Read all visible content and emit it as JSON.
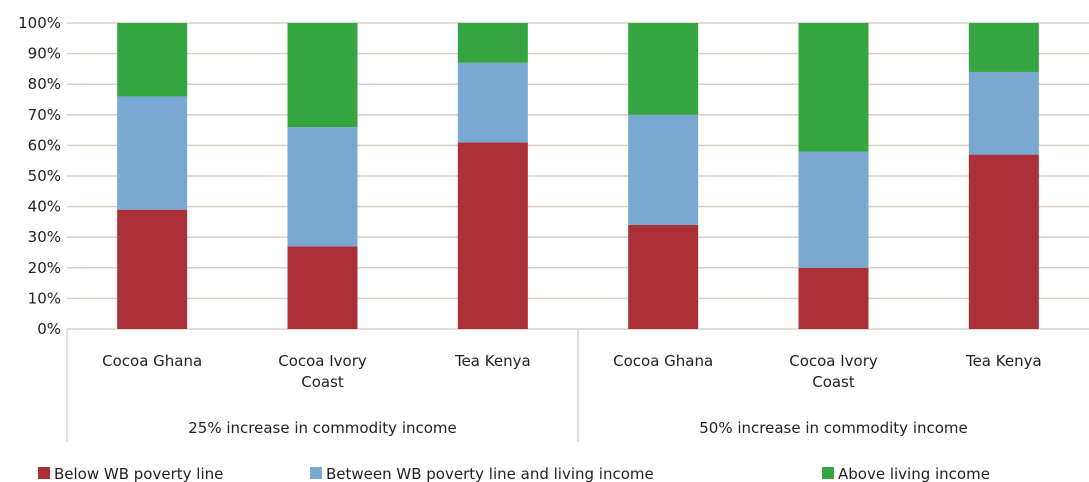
{
  "chart_data": {
    "type": "bar",
    "stacked": true,
    "y_axis": {
      "ylim": [
        0,
        100
      ],
      "ticks": [
        "0%",
        "10%",
        "20%",
        "30%",
        "40%",
        "50%",
        "60%",
        "70%",
        "80%",
        "90%",
        "100%"
      ]
    },
    "grid": true,
    "groups": [
      {
        "label": "25% increase in commodity income",
        "categories": [
          [
            "Cocoa Ghana"
          ],
          [
            "Cocoa Ivory",
            "Coast"
          ],
          [
            "Tea Kenya"
          ]
        ]
      },
      {
        "label": "50% increase in commodity income",
        "categories": [
          [
            "Cocoa Ghana"
          ],
          [
            "Cocoa Ivory",
            "Coast"
          ],
          [
            "Tea Kenya"
          ]
        ]
      }
    ],
    "series": [
      {
        "name": "Below WB poverty line",
        "color": "#ab3038",
        "values": [
          39,
          27,
          61,
          34,
          20,
          57
        ]
      },
      {
        "name": "Between WB poverty line and living income",
        "color": "#79a8d3",
        "values": [
          37,
          39,
          26,
          36,
          38,
          27
        ]
      },
      {
        "name": "Above living income",
        "color": "#34a540",
        "values": [
          24,
          34,
          13,
          30,
          42,
          16
        ]
      }
    ],
    "legend_position": "bottom"
  }
}
